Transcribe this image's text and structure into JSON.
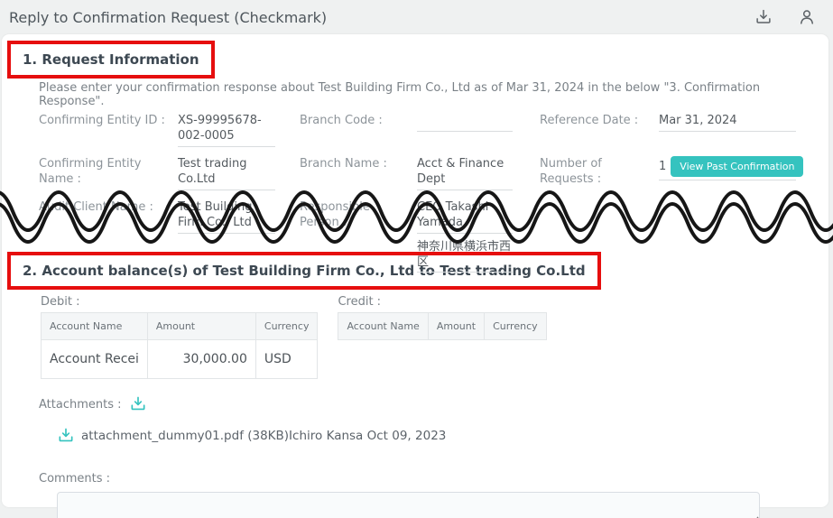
{
  "page": {
    "title": "Reply to Confirmation Request (Checkmark)"
  },
  "colors": {
    "accent_teal": "#35c3bf",
    "highlight_red": "#e60e0e"
  },
  "section1": {
    "heading": "1. Request Information",
    "intro": "Please enter your confirmation response about Test Building Firm Co., Ltd as of Mar 31, 2024 in the below \"3. Confirmation Response\".",
    "fields": {
      "confirming_entity_id": {
        "label": "Confirming Entity ID :",
        "value": "XS-99995678-002-0005"
      },
      "branch_code": {
        "label": "Branch Code :",
        "value": ""
      },
      "reference_date": {
        "label": "Reference Date :",
        "value": "Mar 31, 2024"
      },
      "confirming_entity_name": {
        "label": "Confirming Entity Name :",
        "value": "Test trading Co.Ltd"
      },
      "branch_name": {
        "label": "Branch Name :",
        "value": "Acct & Finance Dept"
      },
      "number_of_requests": {
        "label": "Number of Requests :",
        "value": "1",
        "button": "View Past Confirmation"
      },
      "audit_client_name": {
        "label": "Audit Client Name :",
        "value": "Test Building Firm Co., Ltd"
      },
      "responsible_person": {
        "label": "Responsible Person :",
        "value": "CEO Takashi Yamada",
        "address_line1": "神奈川県横浜市西",
        "address_line2": "区"
      }
    }
  },
  "section2": {
    "heading": "2. Account balance(s) of Test Building Firm Co., Ltd to Test trading Co.Ltd",
    "debit": {
      "label": "Debit :",
      "headers": [
        "Account Name",
        "Amount",
        "Currency"
      ],
      "rows": [
        {
          "account_name": "Account Recei",
          "amount": "30,000.00",
          "currency": "USD"
        }
      ]
    },
    "credit": {
      "label": "Credit :",
      "headers": [
        "Account Name",
        "Amount",
        "Currency"
      ],
      "rows": []
    },
    "attachments": {
      "label": "Attachments :",
      "items": [
        {
          "label": "attachment_dummy01.pdf (38KB)Ichiro Kansa Oct 09, 2023"
        }
      ]
    },
    "comments": {
      "label": "Comments :",
      "value": ""
    }
  }
}
